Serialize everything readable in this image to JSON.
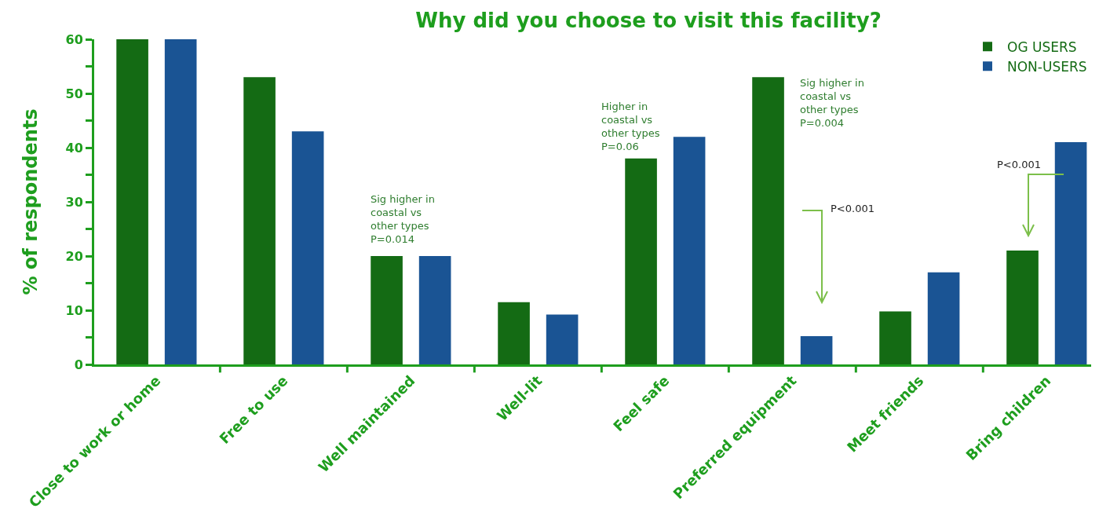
{
  "chart_data": {
    "type": "bar",
    "title": "Why did you choose to visit this facility?",
    "ylabel": "% of respondents",
    "categories": [
      "Close to work or home",
      "Free to use",
      "Well maintained",
      "Well-lit",
      "Feel safe",
      "Preferred equipment",
      "Meet friends",
      "Bring children"
    ],
    "series": [
      {
        "name": "OG USERS",
        "color": "#146b14",
        "values": [
          60,
          53,
          20,
          11.5,
          38,
          53,
          9.8,
          21
        ]
      },
      {
        "name": "NON-USERS",
        "color": "#1a5494",
        "values": [
          60,
          43,
          20,
          9.2,
          42,
          5.2,
          17,
          41
        ]
      }
    ],
    "ylim": [
      0,
      60
    ],
    "yticks": [
      0,
      {
        "value": 5,
        "label": null
      },
      10,
      {
        "value": 15,
        "label": null
      },
      20,
      {
        "value": 25,
        "label": null
      },
      30,
      {
        "value": 35,
        "label": null
      },
      40,
      {
        "value": 45,
        "label": null
      },
      50,
      {
        "value": 55,
        "label": null
      },
      60
    ],
    "annotations": [
      "Sig higher in\ncoastal vs\nother types\nP=0.014",
      "Higher in\ncoastal vs\nother types\nP=0.06",
      "Sig higher in\ncoastal vs\nother types\nP=0.004",
      "P<0.001",
      "P<0.001"
    ],
    "grid": false,
    "legend": "top right"
  }
}
